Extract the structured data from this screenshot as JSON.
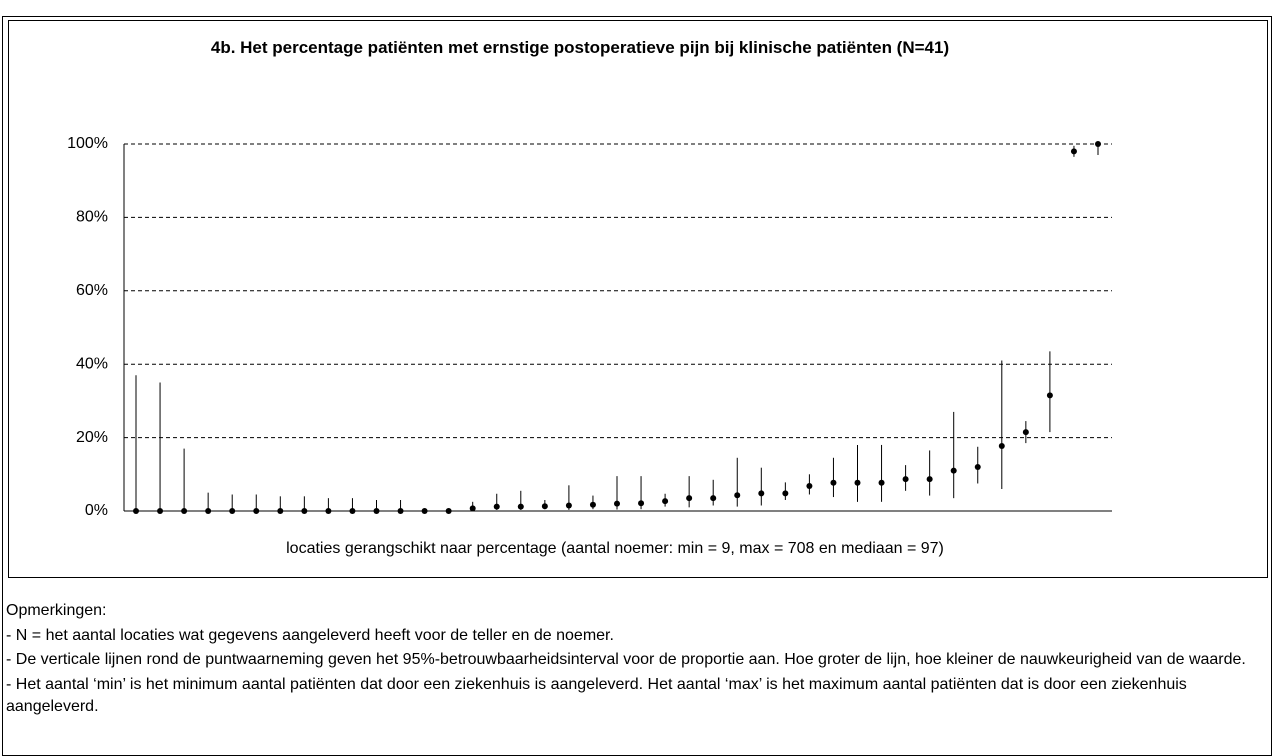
{
  "chart_data": {
    "type": "errorbar",
    "title": "4b. Het percentage patiënten met ernstige postoperatieve pijn bij klinische patiënten (N=41)",
    "x_label": "locaties gerangschikt naar percentage (aantal noemer: min = 9, max = 708 en mediaan = 97)",
    "values": [
      0,
      0,
      0,
      0,
      0,
      0,
      0,
      0,
      0,
      0,
      0,
      0,
      0,
      0,
      0.7,
      1.2,
      1.2,
      1.3,
      1.5,
      1.7,
      2,
      2.1,
      2.7,
      3.5,
      3.5,
      4.3,
      4.8,
      4.8,
      6.8,
      7.7,
      7.7,
      7.7,
      8.7,
      8.7,
      11,
      12,
      17.7,
      21.5,
      31.5,
      98,
      100
    ],
    "lower": [
      0,
      0,
      0,
      0,
      0,
      0,
      0,
      0,
      0,
      0,
      0,
      0,
      0,
      0,
      0.2,
      0.3,
      0.3,
      0.5,
      0.3,
      0.5,
      0.4,
      0.5,
      1.2,
      1,
      1.5,
      1.2,
      1.5,
      3,
      4.5,
      3.8,
      2.5,
      2.5,
      5.5,
      4.2,
      3.5,
      7.5,
      6,
      18.5,
      21.5,
      96.5,
      97
    ],
    "upper": [
      37,
      35,
      17,
      5,
      4.5,
      4.5,
      4,
      4,
      3.5,
      3.5,
      3,
      3,
      0,
      0,
      2.5,
      4.7,
      5.5,
      3,
      7,
      4.2,
      9.5,
      9.5,
      4.7,
      9.5,
      8.5,
      14.5,
      11.8,
      7.8,
      10,
      14.5,
      18,
      18,
      12.5,
      16.5,
      27,
      17.5,
      41,
      24.5,
      43.5,
      99.5,
      100
    ],
    "color": "#000000",
    "ylim": [
      0,
      100
    ],
    "yticks": [
      {
        "value": 0,
        "label": "0%"
      },
      {
        "value": 20,
        "label": "20%"
      },
      {
        "value": 40,
        "label": "40%"
      },
      {
        "value": 60,
        "label": "60%"
      },
      {
        "value": 80,
        "label": "80%"
      },
      {
        "value": 100,
        "label": "100%"
      }
    ],
    "grid": true
  },
  "notes": {
    "heading": "Opmerkingen:",
    "items": [
      "- N = het aantal locaties wat gegevens aangeleverd heeft voor de teller en de noemer.",
      "- De verticale lijnen rond de puntwaarneming geven het 95%-betrouwbaarheidsinterval voor de proportie aan. Hoe groter de lijn, hoe kleiner de nauwkeurigheid van de waarde.",
      "- Het aantal ‘min’ is het minimum aantal patiënten dat door een ziekenhuis is aangeleverd. Het aantal ‘max’ is het maximum aantal patiënten dat is door een ziekenhuis aangeleverd."
    ]
  }
}
